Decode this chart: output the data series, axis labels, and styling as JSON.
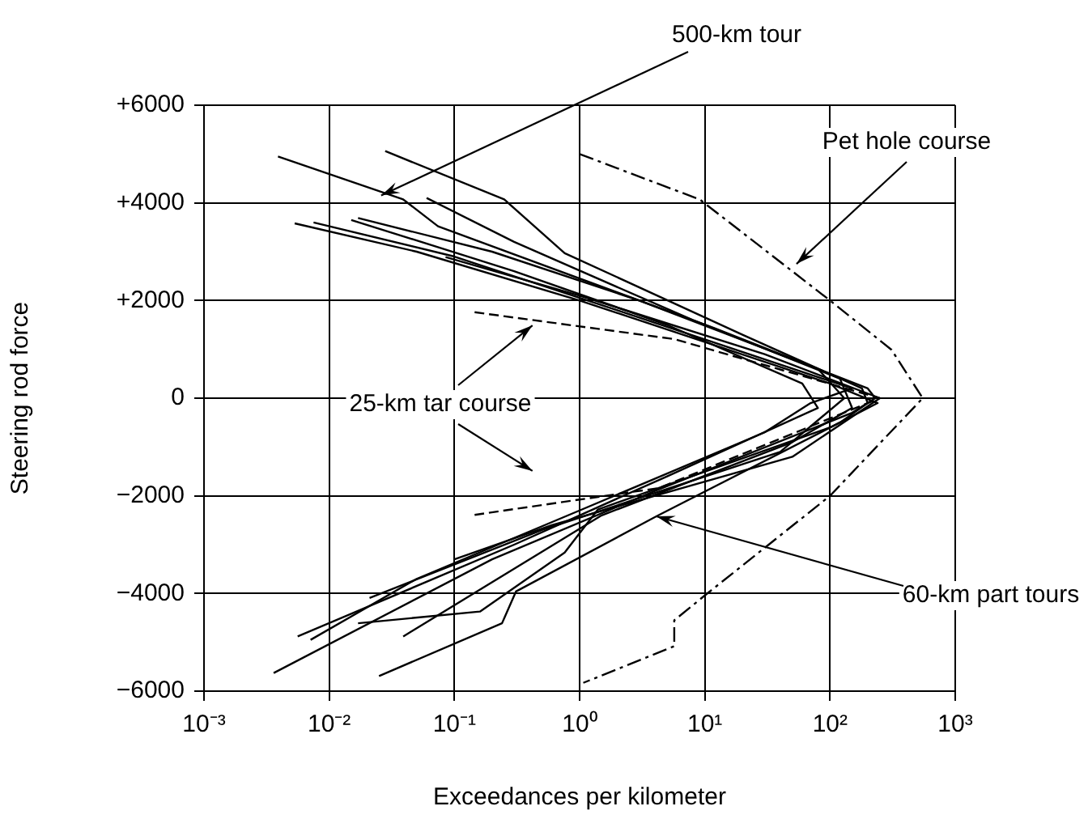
{
  "chart_data": {
    "type": "line",
    "xlabel": "Exceedances per kilometer",
    "ylabel": "Steering rod force",
    "log": "x",
    "grid": true,
    "legend": false,
    "marker": "none",
    "xlim": [
      0.001,
      1000
    ],
    "xticks": [
      {
        "value": 0.001,
        "label": "10⁻³"
      },
      {
        "value": 0.01,
        "label": "10⁻²"
      },
      {
        "value": 0.1,
        "label": "10⁻¹"
      },
      {
        "value": 1,
        "label": "10⁰"
      },
      {
        "value": 10,
        "label": "10¹"
      },
      {
        "value": 100,
        "label": "10²"
      },
      {
        "value": 1000,
        "label": "10³"
      }
    ],
    "ylim": [
      -6000,
      6000
    ],
    "yticks": [
      {
        "value": -6000,
        "label": "−6000"
      },
      {
        "value": -4000,
        "label": "−4000"
      },
      {
        "value": -2000,
        "label": "−2000"
      },
      0,
      {
        "value": 2000,
        "label": "+2000"
      },
      {
        "value": 4000,
        "label": "+4000"
      },
      {
        "value": 6000,
        "label": "+6000"
      }
    ],
    "series": [
      {
        "type": "line",
        "line_style": "solid",
        "color": "#000000",
        "x": [
          0.0039,
          0.039,
          0.074,
          12,
          200,
          230,
          150,
          4,
          0.2,
          0.0036
        ],
        "values": [
          4950,
          4070,
          3520,
          1430,
          200,
          0,
          -300,
          -1900,
          -3300,
          -5630
        ]
      },
      {
        "type": "line",
        "line_style": "solid",
        "color": "#000000",
        "x": [
          0.028,
          0.25,
          0.76,
          20,
          180,
          200,
          120,
          4.1,
          0.31,
          0.24,
          0.025
        ],
        "values": [
          5060,
          4070,
          2970,
          1300,
          200,
          -100,
          -500,
          -2420,
          -3960,
          -4610,
          -5690
        ]
      },
      {
        "type": "line",
        "line_style": "solid",
        "color": "#000000",
        "x": [
          0.0053,
          0.05,
          1,
          100,
          240,
          100,
          1.4,
          0.76,
          0.16,
          0.017
        ],
        "values": [
          3580,
          3000,
          2000,
          300,
          -100,
          -600,
          -2280,
          -3160,
          -4370,
          -4610
        ]
      },
      {
        "type": "line",
        "line_style": "solid",
        "color": "#000000",
        "x": [
          0.0075,
          0.1,
          2,
          150,
          70,
          30,
          1,
          0.05,
          0.0071
        ],
        "values": [
          3600,
          2900,
          1800,
          200,
          -100,
          -700,
          -2300,
          -3700,
          -4950
        ]
      },
      {
        "type": "line",
        "line_style": "solid",
        "color": "#000000",
        "x": [
          0.015,
          0.3,
          5,
          60,
          80,
          5,
          0.3,
          0.0056
        ],
        "values": [
          3650,
          2600,
          1500,
          300,
          -200,
          -1600,
          -3000,
          -4880
        ]
      },
      {
        "type": "line",
        "line_style": "solid",
        "color": "#000000",
        "x": [
          0.017,
          0.2,
          3,
          80,
          130,
          40,
          0.5,
          0.021
        ],
        "values": [
          3690,
          3000,
          2000,
          600,
          0,
          -1100,
          -2700,
          -4090
        ]
      },
      {
        "type": "line",
        "line_style": "solid",
        "color": "#000000",
        "x": [
          0.06,
          0.3,
          8,
          120,
          150,
          50,
          1.5,
          0.039
        ],
        "values": [
          4100,
          3200,
          1600,
          400,
          -200,
          -900,
          -2400,
          -4880
        ]
      },
      {
        "type": "line",
        "line_style": "solid",
        "color": "#000000",
        "x": [
          0.085,
          1,
          30,
          250,
          50,
          0.6,
          0.1
        ],
        "values": [
          2890,
          2100,
          900,
          0,
          -1200,
          -2600,
          -3300
        ]
      },
      {
        "type": "line",
        "line_style": "dashed",
        "color": "#000000",
        "x": [
          0.145,
          5.7,
          250,
          4.3,
          0.145
        ],
        "values": [
          1760,
          1210,
          0,
          -1840,
          -2390
        ]
      },
      {
        "type": "line",
        "line_style": "dotted",
        "color": "#000000",
        "x": [
          1,
          9.1,
          100,
          310,
          550,
          100,
          10,
          5.7,
          5.7,
          1.07
        ],
        "values": [
          5000,
          4070,
          2000,
          990,
          0,
          -2000,
          -4040,
          -4550,
          -5080,
          -5830
        ]
      }
    ],
    "annotations": [
      {
        "text": "500-km tour",
        "x": 0.026,
        "y": 4150
      },
      {
        "text": "Pet hole course",
        "x": 54,
        "y": 2750
      },
      {
        "text": "25-km tar course",
        "x": 0.42,
        "y": 1490
      },
      {
        "text": "60-km part tours",
        "x": 4.1,
        "y": -2420
      }
    ]
  }
}
